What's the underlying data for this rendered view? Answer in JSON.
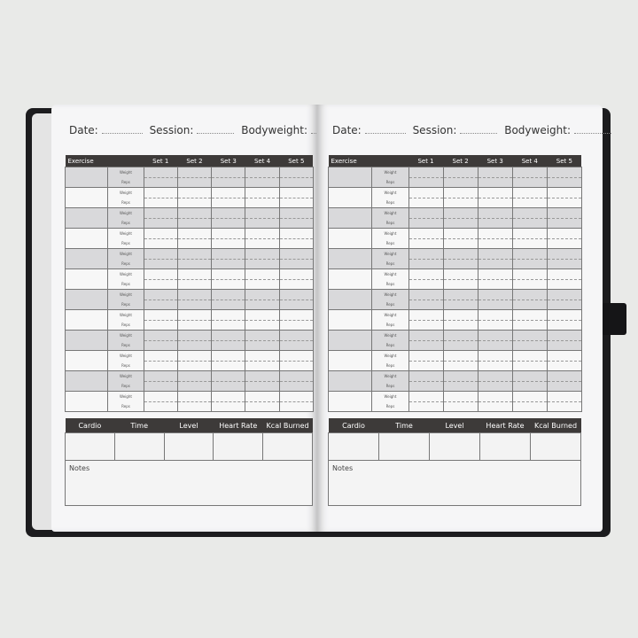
{
  "header": {
    "date": "Date:",
    "session": "Session:",
    "bodyweight": "Bodyweight:"
  },
  "table": {
    "columns": [
      "Exercise",
      "",
      "Set 1",
      "Set 2",
      "Set 3",
      "Set 4",
      "Set 5"
    ],
    "weight": "Weight",
    "reps": "Reps"
  },
  "cardio": {
    "columns": [
      "Cardio",
      "Time",
      "Level",
      "Heart Rate",
      "Kcal Burned"
    ]
  },
  "notes": "Notes",
  "colors": {
    "header": "#3d3a39",
    "cover": "#1c1c1e",
    "shaded_row": "#d9d9db"
  }
}
